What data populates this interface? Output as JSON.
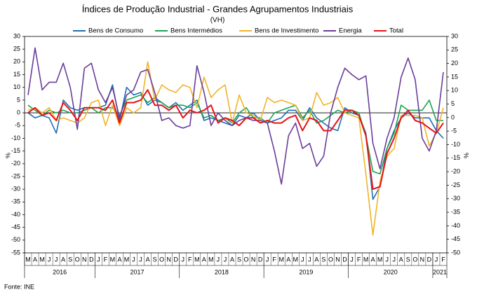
{
  "chart_data": {
    "type": "line",
    "title": "Índices de Produção Industrial - Grandes Agrupamentos Industriais",
    "subtitle": "(VH)",
    "ylabel": "%",
    "y2label": "%",
    "source": "Fonte: INE",
    "categories": [
      "M",
      "A",
      "M",
      "J",
      "J",
      "A",
      "S",
      "O",
      "N",
      "D",
      "J",
      "F",
      "M",
      "A",
      "M",
      "J",
      "J",
      "A",
      "S",
      "O",
      "N",
      "D",
      "J",
      "F",
      "M",
      "A",
      "M",
      "J",
      "J",
      "A",
      "S",
      "O",
      "N",
      "D",
      "J",
      "F",
      "M",
      "A",
      "M",
      "J",
      "J",
      "A",
      "S",
      "O",
      "N",
      "D",
      "J",
      "F",
      "M",
      "A",
      "M",
      "J",
      "J",
      "A",
      "S",
      "O",
      "N",
      "D",
      "J",
      "F"
    ],
    "years": [
      {
        "label": "2016",
        "months": 10
      },
      {
        "label": "2017",
        "months": 12
      },
      {
        "label": "2018",
        "months": 12
      },
      {
        "label": "2019",
        "months": 12
      },
      {
        "label": "2020",
        "months": 12
      },
      {
        "label": "2021",
        "months": 2
      }
    ],
    "ylim": [
      -55,
      30
    ],
    "yticks": [
      -55,
      -50,
      -45,
      -40,
      -35,
      -30,
      -25,
      -20,
      -15,
      -10,
      -5,
      0,
      5,
      10,
      15,
      20,
      25,
      30
    ],
    "y2lim": [
      -50,
      30
    ],
    "y2ticks": [
      -50,
      -45,
      -40,
      -35,
      -30,
      -25,
      -20,
      -15,
      -10,
      -5,
      0,
      5,
      10,
      15,
      20,
      25,
      30
    ],
    "grid": false,
    "series": [
      {
        "name": "Bens de Consumo",
        "color": "#1f6fb4",
        "values": [
          0,
          -2,
          -1,
          -2,
          -8,
          5,
          2,
          1,
          2,
          2,
          2,
          3,
          11,
          -3,
          10,
          7,
          8,
          3,
          5,
          4,
          2,
          4,
          1,
          3,
          5,
          -3,
          -2,
          -3,
          -4,
          -5,
          -1,
          -2,
          0,
          -3,
          -4,
          -3,
          -2,
          1,
          1,
          -3,
          2,
          -2,
          -4,
          -6,
          -7,
          2,
          0,
          -1,
          -8,
          -34,
          -29,
          -14,
          -7,
          -2,
          0,
          -2,
          -2,
          -2,
          -7,
          -10
        ]
      },
      {
        "name": "Bens Intermédios",
        "color": "#1aa553",
        "values": [
          3,
          1,
          -1,
          1,
          0,
          1,
          0,
          0,
          1,
          2,
          0,
          2,
          2,
          -1,
          5,
          6,
          7,
          4,
          6,
          4,
          2,
          3,
          3,
          2,
          4,
          -2,
          -1,
          -3,
          -2,
          -4,
          0,
          2,
          -2,
          -2,
          -4,
          0,
          1,
          2,
          3,
          -2,
          1,
          -4,
          -3,
          -1,
          1,
          0,
          1,
          0,
          -9,
          -23,
          -24,
          -14,
          -8,
          3,
          1,
          1,
          1,
          5,
          -3,
          -3
        ]
      },
      {
        "name": "Bens de Investimento",
        "color": "#f0b429",
        "values": [
          1,
          2,
          0,
          2,
          -3,
          -2,
          -3,
          -4,
          -2,
          4,
          5,
          -5,
          3,
          -5,
          2,
          0,
          2,
          20,
          5,
          11,
          9,
          8,
          11,
          10,
          2,
          14,
          6,
          9,
          11,
          -4,
          7,
          0,
          -1,
          -3,
          6,
          4,
          5,
          4,
          3,
          -3,
          -2,
          8,
          3,
          4,
          6,
          0,
          -1,
          -2,
          -24,
          -48,
          -27,
          -17,
          -14,
          -1,
          -1,
          -1,
          -2,
          -13,
          -8,
          2
        ]
      },
      {
        "name": "Energia",
        "color": "#6a3d9a",
        "values": [
          7,
          25.5,
          9,
          12,
          12,
          19.5,
          10,
          -6.5,
          17.5,
          19.5,
          9,
          4,
          10,
          -2,
          7,
          9,
          16,
          17,
          8,
          -3,
          -2,
          -5,
          -6,
          -5,
          18.5,
          8,
          -5,
          0,
          -3,
          -5,
          -3,
          -2,
          -3,
          -3,
          -4,
          -15,
          -28,
          -9,
          -4,
          -14,
          -12,
          -21,
          -17,
          0,
          10,
          17.5,
          15,
          13,
          14.5,
          -12,
          -22,
          -10,
          -2,
          14,
          21.5,
          13,
          -10,
          -15,
          -7,
          16
        ]
      },
      {
        "name": "Total",
        "color": "#e3141b",
        "values": [
          0,
          2,
          -1,
          0,
          -3,
          4,
          1,
          -3,
          2,
          2,
          2,
          1,
          5,
          -4,
          4,
          4,
          5,
          9,
          3,
          3,
          1,
          3,
          -2,
          1,
          0,
          1,
          3,
          -4,
          -2,
          -3,
          -5,
          -2,
          -2,
          -4,
          -3,
          -4,
          -4,
          -2,
          -1,
          -7,
          -2,
          -3,
          -7,
          -7,
          -3,
          1,
          1,
          -1,
          -9,
          -30,
          -29,
          -16,
          -10,
          -2,
          1,
          -3,
          -4,
          -6,
          -8,
          -4
        ]
      }
    ]
  }
}
